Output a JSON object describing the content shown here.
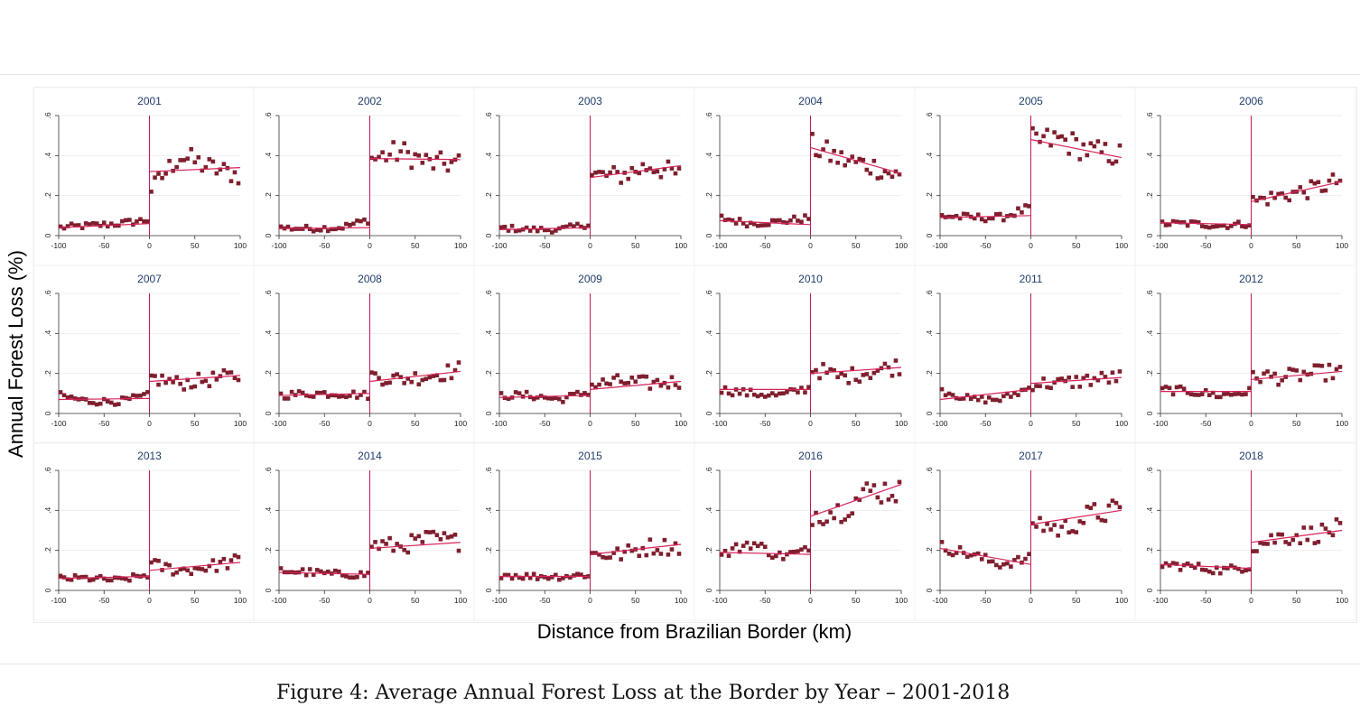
{
  "figure": {
    "caption": "Figure 4: Average Annual Forest Loss at the Border by Year – 2001-2018",
    "ylabel": "Annual Forest Loss (%)",
    "xlabel": "Distance from Brazilian Border (km)"
  },
  "colors": {
    "marker": "#7f1f2e",
    "fit_line": "#d6245a",
    "cutoff_line": "#c2185b",
    "panel_title": "#1f3c6b",
    "grid": "#eeeeee"
  },
  "chart_data": {
    "type": "scatter",
    "layout": "small multiples, 3 rows x 6 columns",
    "xlim": [
      -100,
      100
    ],
    "ylim": [
      0,
      0.6
    ],
    "x_ticks": [
      -100,
      -50,
      0,
      50,
      100
    ],
    "y_ticks": [
      0,
      0.2,
      0.4,
      0.6
    ],
    "y_tick_labels": [
      "0",
      ".2",
      ".4",
      ".6"
    ],
    "cutoff_x": 0,
    "panels": [
      {
        "title": "2001",
        "left": [
          0.04,
          0.05,
          0.06,
          0.08
        ],
        "right": [
          0.22,
          0.4,
          0.34,
          0.3
        ],
        "fit_left": [
          0.04,
          0.06
        ],
        "fit_right": [
          0.32,
          0.34
        ]
      },
      {
        "title": "2002",
        "left": [
          0.04,
          0.035,
          0.04,
          0.08
        ],
        "right": [
          0.38,
          0.42,
          0.36,
          0.36
        ],
        "fit_left": [
          0.035,
          0.04
        ],
        "fit_right": [
          0.385,
          0.38
        ]
      },
      {
        "title": "2003",
        "left": [
          0.04,
          0.03,
          0.03,
          0.06
        ],
        "right": [
          0.3,
          0.3,
          0.35,
          0.3
        ],
        "fit_left": [
          0.03,
          0.04
        ],
        "fit_right": [
          0.29,
          0.35
        ]
      },
      {
        "title": "2004",
        "left": [
          0.09,
          0.06,
          0.07,
          0.09
        ],
        "right": [
          0.45,
          0.38,
          0.35,
          0.29
        ],
        "fit_left": [
          0.075,
          0.055
        ],
        "fit_right": [
          0.44,
          0.31
        ]
      },
      {
        "title": "2005",
        "left": [
          0.1,
          0.09,
          0.09,
          0.14
        ],
        "right": [
          0.47,
          0.48,
          0.42,
          0.4
        ],
        "fit_left": [
          0.09,
          0.1
        ],
        "fit_right": [
          0.48,
          0.39
        ]
      },
      {
        "title": "2006",
        "left": [
          0.06,
          0.06,
          0.05,
          0.06
        ],
        "right": [
          0.17,
          0.2,
          0.23,
          0.28
        ],
        "fit_left": [
          0.065,
          0.055
        ],
        "fit_right": [
          0.17,
          0.27
        ]
      },
      {
        "title": "2007",
        "left": [
          0.09,
          0.06,
          0.06,
          0.09
        ],
        "right": [
          0.18,
          0.15,
          0.17,
          0.19
        ],
        "fit_left": [
          0.07,
          0.075
        ],
        "fit_right": [
          0.16,
          0.19
        ]
      },
      {
        "title": "2008",
        "left": [
          0.09,
          0.1,
          0.1,
          0.09
        ],
        "right": [
          0.19,
          0.17,
          0.19,
          0.22
        ],
        "fit_left": [
          0.09,
          0.1
        ],
        "fit_right": [
          0.16,
          0.21
        ]
      },
      {
        "title": "2009",
        "left": [
          0.09,
          0.09,
          0.07,
          0.11
        ],
        "right": [
          0.14,
          0.16,
          0.15,
          0.16
        ],
        "fit_left": [
          0.08,
          0.09
        ],
        "fit_right": [
          0.12,
          0.16
        ]
      },
      {
        "title": "2010",
        "left": [
          0.12,
          0.1,
          0.09,
          0.13
        ],
        "right": [
          0.23,
          0.18,
          0.21,
          0.24
        ],
        "fit_left": [
          0.12,
          0.12
        ],
        "fit_right": [
          0.2,
          0.23
        ]
      },
      {
        "title": "2011",
        "left": [
          0.12,
          0.07,
          0.07,
          0.13
        ],
        "right": [
          0.15,
          0.15,
          0.17,
          0.18
        ],
        "fit_left": [
          0.07,
          0.12
        ],
        "fit_right": [
          0.15,
          0.18
        ]
      },
      {
        "title": "2012",
        "left": [
          0.12,
          0.11,
          0.09,
          0.11
        ],
        "right": [
          0.19,
          0.18,
          0.2,
          0.21
        ],
        "fit_left": [
          0.11,
          0.11
        ],
        "fit_right": [
          0.17,
          0.21
        ]
      },
      {
        "title": "2013",
        "left": [
          0.06,
          0.06,
          0.05,
          0.08
        ],
        "right": [
          0.13,
          0.1,
          0.12,
          0.15
        ],
        "fit_left": [
          0.06,
          0.07
        ],
        "fit_right": [
          0.1,
          0.14
        ]
      },
      {
        "title": "2014",
        "left": [
          0.1,
          0.09,
          0.08,
          0.08
        ],
        "right": [
          0.23,
          0.22,
          0.26,
          0.24
        ],
        "fit_left": [
          0.09,
          0.08
        ],
        "fit_right": [
          0.21,
          0.24
        ]
      },
      {
        "title": "2015",
        "left": [
          0.08,
          0.07,
          0.07,
          0.08
        ],
        "right": [
          0.18,
          0.18,
          0.22,
          0.22
        ],
        "fit_left": [
          0.07,
          0.07
        ],
        "fit_right": [
          0.18,
          0.23
        ]
      },
      {
        "title": "2016",
        "left": [
          0.17,
          0.24,
          0.17,
          0.2
        ],
        "right": [
          0.38,
          0.4,
          0.5,
          0.5
        ],
        "fit_left": [
          0.19,
          0.18
        ],
        "fit_right": [
          0.37,
          0.53
        ]
      },
      {
        "title": "2017",
        "left": [
          0.22,
          0.18,
          0.13,
          0.16
        ],
        "right": [
          0.35,
          0.3,
          0.38,
          0.4
        ],
        "fit_left": [
          0.21,
          0.13
        ],
        "fit_right": [
          0.33,
          0.4
        ]
      },
      {
        "title": "2018",
        "left": [
          0.13,
          0.12,
          0.1,
          0.12
        ],
        "right": [
          0.22,
          0.27,
          0.28,
          0.31
        ],
        "fit_left": [
          0.13,
          0.11
        ],
        "fit_right": [
          0.24,
          0.3
        ]
      }
    ]
  }
}
